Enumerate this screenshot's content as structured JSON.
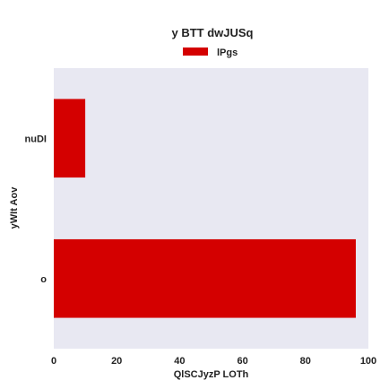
{
  "chart_data": {
    "type": "bar",
    "orientation": "horizontal",
    "title": "y BTT dwJUSq",
    "xlabel": "QlSCJyzP LOTh",
    "ylabel": "yWIt  Aov",
    "categories": [
      "nuDI",
      "o"
    ],
    "series": [
      {
        "name": "lPgs",
        "values": [
          10,
          96
        ],
        "color": "#d40000"
      }
    ],
    "xlim": [
      0,
      100
    ],
    "xticks": [
      0,
      20,
      40,
      60,
      80,
      100
    ],
    "grid": false,
    "legend_position": "top-center",
    "background_color": "#e8e8f2"
  }
}
